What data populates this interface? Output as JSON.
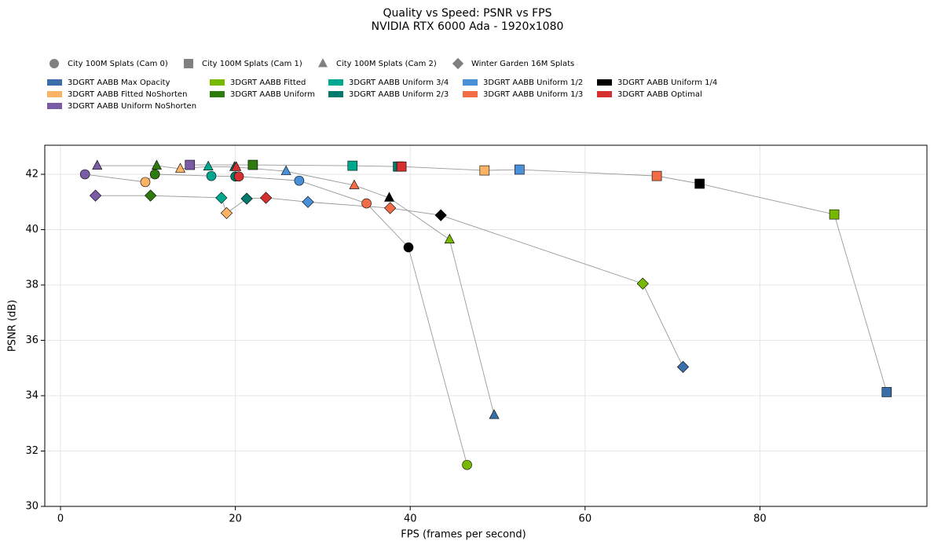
{
  "chart_data": {
    "type": "scatter",
    "title": "Quality vs Speed: PSNR vs FPS",
    "subtitle": "NVIDIA RTX 6000 Ada - 1920x1080",
    "x_label": "FPS (frames per second)",
    "y_label": "PSNR (dB)",
    "xlim": [
      -1.8,
      99.1
    ],
    "ylim": [
      30,
      43.05
    ],
    "xticks": [
      0,
      20,
      40,
      60,
      80
    ],
    "yticks": [
      30,
      32,
      34,
      36,
      38,
      40,
      42
    ],
    "grid": true,
    "line_color": "#999999",
    "marker_legend_color": "#808080",
    "methods": [
      {
        "name": "3DGRT AABB Max Opacity",
        "color": "#3a6ea8"
      },
      {
        "name": "3DGRT AABB Fitted NoShorten",
        "color": "#fdb366"
      },
      {
        "name": "3DGRT AABB Uniform NoShorten",
        "color": "#7b5aa6"
      },
      {
        "name": "3DGRT AABB Fitted",
        "color": "#76b900"
      },
      {
        "name": "3DGRT AABB Uniform",
        "color": "#2d7a0f"
      },
      {
        "name": "3DGRT AABB Uniform 3/4",
        "color": "#00a890"
      },
      {
        "name": "3DGRT AABB Uniform 2/3",
        "color": "#007a6c"
      },
      {
        "name": "3DGRT AABB Uniform 1/2",
        "color": "#4a90d9"
      },
      {
        "name": "3DGRT AABB Uniform 1/3",
        "color": "#f26d45"
      },
      {
        "name": "3DGRT AABB Uniform 1/4",
        "color": "#000000"
      },
      {
        "name": "3DGRT AABB Optimal",
        "color": "#d62f2f"
      }
    ],
    "scenes": [
      {
        "name": "City 100M Splats (Cam 0)",
        "marker": "circle",
        "x": [
          2.8,
          9.7,
          10.8,
          17.25,
          20.0,
          20.4,
          27.3,
          35.0,
          39.8,
          46.5
        ],
        "values": [
          42.0,
          41.72,
          42.0,
          41.94,
          41.92,
          41.92,
          41.77,
          40.95,
          39.36,
          31.5
        ],
        "colors": [
          "#7b5aa6",
          "#fdb366",
          "#2d7a0f",
          "#00a890",
          "#007a6c",
          "#d62f2f",
          "#4a90d9",
          "#f26d45",
          "#000000",
          "#76b900"
        ]
      },
      {
        "name": "City 100M Splats (Cam 1)",
        "marker": "square",
        "x": [
          14.8,
          22.0,
          33.4,
          38.6,
          39.0,
          48.5,
          52.5,
          68.2,
          73.1,
          88.5,
          94.5
        ],
        "values": [
          42.34,
          42.34,
          42.31,
          42.28,
          42.28,
          42.14,
          42.17,
          41.94,
          41.66,
          40.55,
          34.13
        ],
        "colors": [
          "#7b5aa6",
          "#2d7a0f",
          "#00a890",
          "#007a6c",
          "#d62f2f",
          "#fdb366",
          "#4a90d9",
          "#f26d45",
          "#000000",
          "#76b900",
          "#3a6ea8"
        ]
      },
      {
        "name": "City 100M Splats (Cam 2)",
        "marker": "triangle",
        "x": [
          4.2,
          11.0,
          13.7,
          16.9,
          19.9,
          20.1,
          25.8,
          33.6,
          37.6,
          44.5,
          49.6
        ],
        "values": [
          42.31,
          42.31,
          42.2,
          42.28,
          42.26,
          42.26,
          42.11,
          41.6,
          41.15,
          39.64,
          33.3
        ],
        "colors": [
          "#7b5aa6",
          "#2d7a0f",
          "#fdb366",
          "#00a890",
          "#007a6c",
          "#d62f2f",
          "#4a90d9",
          "#f26d45",
          "#000000",
          "#76b900",
          "#3a6ea8"
        ]
      },
      {
        "name": "Winter Garden 16M Splats",
        "marker": "diamond",
        "x": [
          4.0,
          10.3,
          18.4,
          19.0,
          21.3,
          23.5,
          28.3,
          37.7,
          43.5,
          66.6,
          71.2
        ],
        "values": [
          41.23,
          41.23,
          41.15,
          40.6,
          41.12,
          41.15,
          41.0,
          40.78,
          40.52,
          38.05,
          35.04
        ],
        "colors": [
          "#7b5aa6",
          "#2d7a0f",
          "#00a890",
          "#fdb366",
          "#007a6c",
          "#d62f2f",
          "#4a90d9",
          "#f26d45",
          "#000000",
          "#76b900",
          "#3a6ea8"
        ]
      }
    ]
  }
}
